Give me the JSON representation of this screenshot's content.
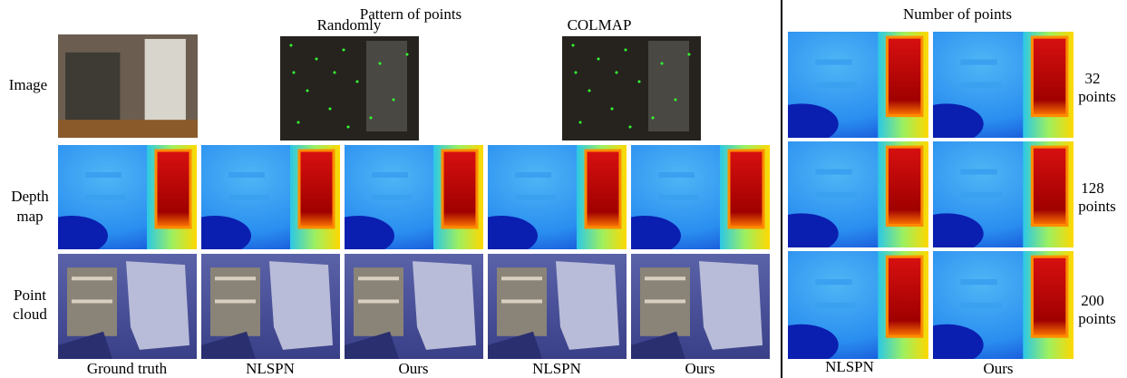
{
  "header": {
    "title": "Pattern of points",
    "right_title": "Number of points"
  },
  "patterns": [
    "Randomly",
    "COLMAP"
  ],
  "row_labels": [
    [
      "Image"
    ],
    [
      "Depth",
      "map"
    ],
    [
      "Point",
      "cloud"
    ]
  ],
  "columns": [
    "Ground truth",
    "NLSPN",
    "Ours",
    "NLSPN",
    "Ours"
  ],
  "right_columns": [
    "NLSPN",
    "Ours"
  ],
  "right_rows": [
    [
      "32",
      "points"
    ],
    [
      "128",
      "points"
    ],
    [
      "200",
      "points"
    ]
  ]
}
